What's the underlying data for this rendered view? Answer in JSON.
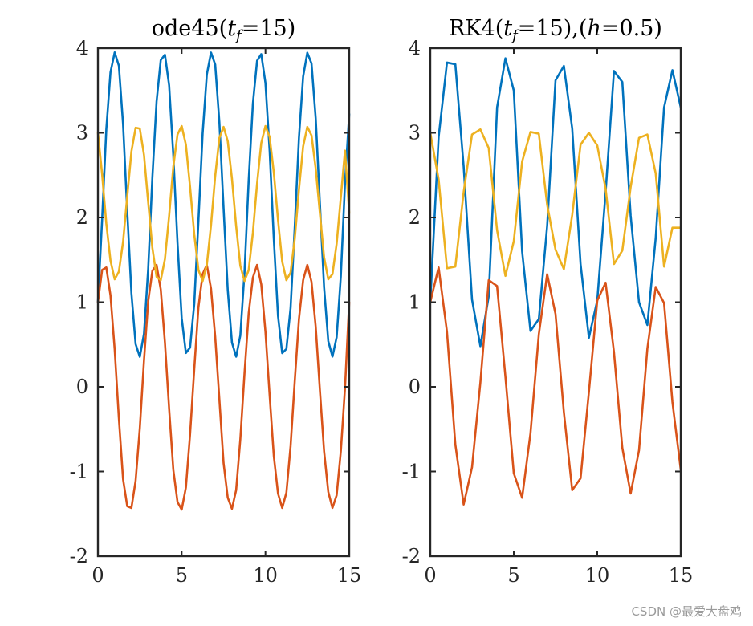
{
  "chart_data": [
    {
      "type": "line",
      "title_parts": {
        "prefix": "ode45(",
        "var": "t",
        "sub": "f",
        "suffix": "=15)"
      },
      "xlim": [
        0,
        15
      ],
      "ylim": [
        -2,
        4
      ],
      "xticks": [
        0,
        5,
        10,
        15
      ],
      "yticks": [
        -2,
        -1,
        0,
        1,
        2,
        3,
        4
      ],
      "xtick_labels": [
        "0",
        "5",
        "10",
        "15"
      ],
      "ytick_labels": [
        "-2",
        "-1",
        "0",
        "1",
        "2",
        "3",
        "4"
      ],
      "grid": false,
      "box": true,
      "series": [
        {
          "color": "#0072BD",
          "x": [
            0,
            0.25,
            0.5,
            0.75,
            1,
            1.25,
            1.5,
            1.75,
            2,
            2.25,
            2.5,
            2.75,
            3,
            3.25,
            3.5,
            3.75,
            4,
            4.25,
            4.5,
            4.75,
            5,
            5.25,
            5.5,
            5.75,
            6,
            6.25,
            6.5,
            6.75,
            7,
            7.25,
            7.5,
            7.75,
            8,
            8.25,
            8.5,
            8.75,
            9,
            9.25,
            9.5,
            9.75,
            10,
            10.25,
            10.5,
            10.75,
            11,
            11.25,
            11.5,
            11.75,
            12,
            12.25,
            12.5,
            12.75,
            13,
            13.25,
            13.5,
            13.75,
            14,
            14.25,
            14.5,
            14.75,
            15
          ],
          "y": [
            1,
            1.977,
            3.04,
            3.716,
            3.95,
            3.793,
            3.105,
            2.072,
            1.105,
            0.505,
            0.355,
            0.627,
            1.393,
            2.474,
            3.368,
            3.859,
            3.922,
            3.561,
            2.734,
            1.702,
            0.813,
            0.4,
            0.464,
            0.981,
            1.964,
            2.992,
            3.688,
            3.948,
            3.806,
            3.124,
            2.111,
            1.143,
            0.523,
            0.356,
            0.607,
            1.35,
            2.441,
            3.345,
            3.851,
            3.929,
            3.588,
            2.79,
            1.744,
            0.836,
            0.398,
            0.448,
            0.931,
            1.892,
            2.941,
            3.665,
            3.946,
            3.82,
            3.171,
            2.166,
            1.176,
            0.54,
            0.357,
            0.585,
            1.308,
            2.41,
            3.222
          ]
        },
        {
          "color": "#D95319",
          "x": [
            0,
            0.25,
            0.5,
            0.75,
            1,
            1.25,
            1.5,
            1.75,
            2,
            2.25,
            2.5,
            2.75,
            3,
            3.25,
            3.5,
            3.75,
            4,
            4.25,
            4.5,
            4.75,
            5,
            5.25,
            5.5,
            5.75,
            6,
            6.25,
            6.5,
            6.75,
            7,
            7.25,
            7.5,
            7.75,
            8,
            8.25,
            8.5,
            8.75,
            9,
            9.25,
            9.5,
            9.75,
            10,
            10.25,
            10.5,
            10.75,
            11,
            11.25,
            11.5,
            11.75,
            12,
            12.25,
            12.5,
            12.75,
            13,
            13.25,
            13.5,
            13.75,
            14,
            14.25,
            14.5,
            14.75,
            15
          ],
          "y": [
            1,
            1.38,
            1.41,
            1.08,
            0.44,
            -0.37,
            -1.09,
            -1.41,
            -1.43,
            -1.11,
            -0.49,
            0.31,
            1.01,
            1.37,
            1.44,
            1.15,
            0.52,
            -0.26,
            -0.98,
            -1.36,
            -1.45,
            -1.19,
            -0.56,
            0.21,
            0.94,
            1.33,
            1.44,
            1.16,
            0.59,
            -0.15,
            -0.9,
            -1.31,
            -1.44,
            -1.22,
            -0.62,
            0.16,
            0.87,
            1.29,
            1.44,
            1.21,
            0.65,
            -0.1,
            -0.82,
            -1.26,
            -1.43,
            -1.25,
            -0.7,
            0.07,
            0.8,
            1.26,
            1.44,
            1.24,
            0.71,
            -0.04,
            -0.76,
            -1.24,
            -1.43,
            -1.28,
            -0.76,
            -0.01,
            1.0
          ]
        },
        {
          "color": "#EDB120",
          "x": [
            0,
            0.25,
            0.5,
            0.75,
            1,
            1.25,
            1.5,
            1.75,
            2,
            2.25,
            2.5,
            2.75,
            3,
            3.25,
            3.5,
            3.75,
            4,
            4.25,
            4.5,
            4.75,
            5,
            5.25,
            5.5,
            5.75,
            6,
            6.25,
            6.5,
            6.75,
            7,
            7.25,
            7.5,
            7.75,
            8,
            8.25,
            8.5,
            8.75,
            9,
            9.25,
            9.5,
            9.75,
            10,
            10.25,
            10.5,
            10.75,
            11,
            11.25,
            11.5,
            11.75,
            12,
            12.25,
            12.5,
            12.75,
            13,
            13.25,
            13.5,
            13.75,
            14,
            14.25,
            14.5,
            14.75,
            15
          ],
          "y": [
            3,
            2.51,
            1.93,
            1.49,
            1.27,
            1.36,
            1.71,
            2.25,
            2.78,
            3.06,
            3.05,
            2.74,
            2.18,
            1.64,
            1.3,
            1.26,
            1.51,
            2.02,
            2.6,
            2.98,
            3.08,
            2.86,
            2.36,
            1.8,
            1.38,
            1.25,
            1.44,
            1.91,
            2.49,
            2.94,
            3.07,
            2.9,
            2.46,
            1.9,
            1.43,
            1.25,
            1.38,
            1.82,
            2.4,
            2.88,
            3.08,
            2.95,
            2.53,
            1.97,
            1.48,
            1.26,
            1.35,
            1.75,
            2.33,
            2.84,
            3.07,
            2.97,
            2.58,
            2.05,
            1.53,
            1.27,
            1.33,
            1.69,
            2.24,
            2.79,
            2.05
          ]
        }
      ]
    },
    {
      "type": "line",
      "title_parts": {
        "prefix": "RK4(",
        "var": "t",
        "sub": "f",
        "suffix": "=15),(",
        "var2": "h",
        "suffix2": "=0.5)"
      },
      "xlim": [
        0,
        15
      ],
      "ylim": [
        -2,
        4
      ],
      "xticks": [
        0,
        5,
        10,
        15
      ],
      "yticks": [
        -2,
        -1,
        0,
        1,
        2,
        3,
        4
      ],
      "xtick_labels": [
        "0",
        "5",
        "10",
        "15"
      ],
      "ytick_labels": [
        "-2",
        "-1",
        "0",
        "1",
        "2",
        "3",
        "4"
      ],
      "grid": false,
      "box": true,
      "series": [
        {
          "color": "#0072BD",
          "x": [
            0,
            0.5,
            1,
            1.5,
            2,
            2.5,
            3,
            3.5,
            4,
            4.5,
            5,
            5.5,
            6,
            6.5,
            7,
            7.5,
            8,
            8.5,
            9,
            9.5,
            10,
            10.5,
            11,
            11.5,
            12,
            12.5,
            13,
            13.5,
            14,
            14.5,
            15
          ],
          "y": [
            1,
            2.95,
            3.83,
            3.81,
            2.6,
            1.03,
            0.48,
            1.07,
            3.3,
            3.88,
            3.5,
            1.6,
            0.66,
            0.8,
            1.9,
            3.62,
            3.79,
            3.05,
            1.45,
            0.58,
            1.02,
            2.3,
            3.73,
            3.6,
            2.02,
            1.0,
            0.73,
            1.76,
            3.3,
            3.74,
            3.3
          ]
        },
        {
          "color": "#D95319",
          "x": [
            0,
            0.5,
            1,
            1.5,
            2,
            2.5,
            3,
            3.5,
            4,
            4.5,
            5,
            5.5,
            6,
            6.5,
            7,
            7.5,
            8,
            8.5,
            9,
            9.5,
            10,
            10.5,
            11,
            11.5,
            12,
            12.5,
            13,
            13.5,
            14,
            14.5,
            15
          ],
          "y": [
            1,
            1.41,
            0.65,
            -0.68,
            -1.39,
            -0.95,
            0.05,
            1.26,
            1.19,
            0.12,
            -1.02,
            -1.31,
            -0.55,
            0.62,
            1.33,
            0.86,
            -0.3,
            -1.22,
            -1.08,
            -0.06,
            1.02,
            1.23,
            0.41,
            -0.72,
            -1.26,
            -0.75,
            0.45,
            1.18,
            0.99,
            -0.18,
            -0.98
          ]
        },
        {
          "color": "#EDB120",
          "x": [
            0,
            0.5,
            1,
            1.5,
            2,
            2.5,
            3,
            3.5,
            4,
            4.5,
            5,
            5.5,
            6,
            6.5,
            7,
            7.5,
            8,
            8.5,
            9,
            9.5,
            10,
            10.5,
            11,
            11.5,
            12,
            12.5,
            13,
            13.5,
            14,
            14.5,
            15
          ],
          "y": [
            3,
            2.45,
            1.4,
            1.42,
            2.3,
            2.98,
            3.04,
            2.82,
            1.85,
            1.31,
            1.72,
            2.66,
            3.01,
            2.99,
            2.15,
            1.62,
            1.39,
            2.03,
            2.86,
            3.0,
            2.85,
            2.34,
            1.45,
            1.61,
            2.36,
            2.94,
            2.98,
            2.52,
            1.42,
            1.88,
            1.88
          ]
        }
      ]
    }
  ],
  "watermark": "CSDN @最爱大盘鸡"
}
